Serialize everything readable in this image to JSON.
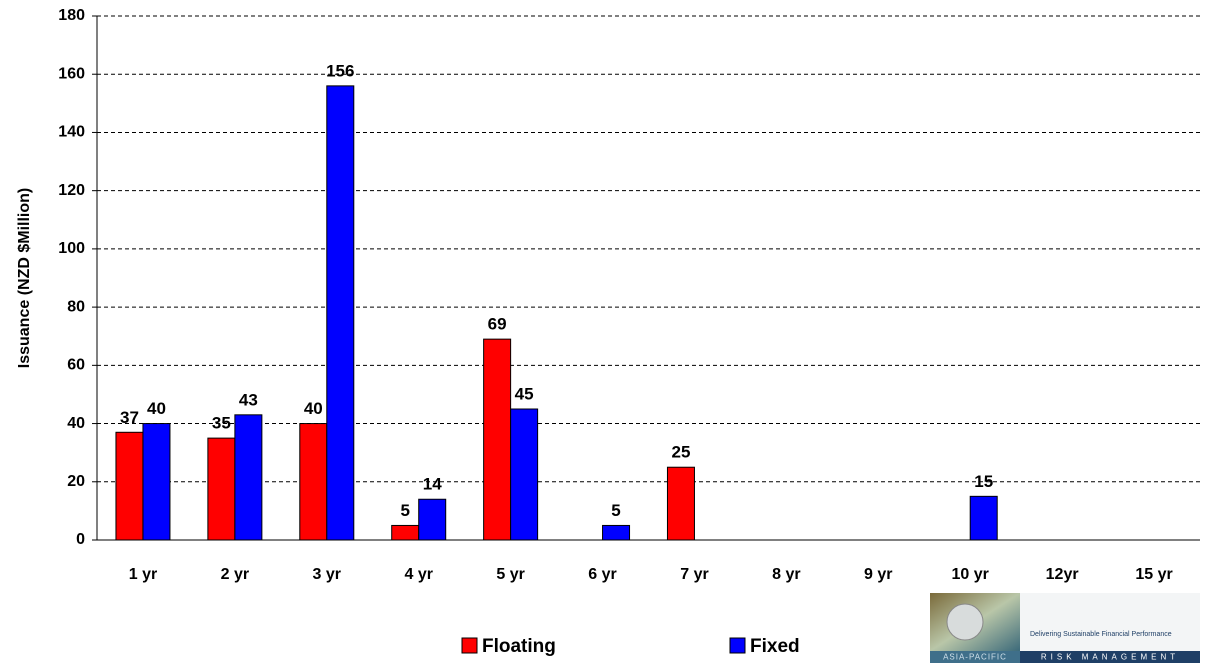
{
  "chart_data": {
    "type": "bar",
    "y_label": "Issuance (NZD $Million)",
    "categories": [
      "1 yr",
      "2 yr",
      "3 yr",
      "4 yr",
      "5 yr",
      "6 yr",
      "7 yr",
      "8 yr",
      "9 yr",
      "10 yr",
      "12yr",
      "15 yr"
    ],
    "series": [
      {
        "name": "Floating",
        "color": "#ff0000",
        "values": [
          37,
          35,
          40,
          5,
          69,
          null,
          25,
          null,
          null,
          null,
          null,
          null
        ]
      },
      {
        "name": "Fixed",
        "color": "#0000ff",
        "values": [
          40,
          43,
          156,
          14,
          45,
          5,
          null,
          null,
          null,
          15,
          null,
          null
        ]
      }
    ],
    "ylim": [
      0,
      180
    ],
    "yticks": [
      0,
      20,
      40,
      60,
      80,
      100,
      120,
      140,
      160,
      180
    ],
    "grid": true,
    "legend": "bottom"
  },
  "logo": {
    "tagline": "Delivering Sustainable Financial Performance",
    "region": "ASIA-PACIFIC",
    "name": "RISK MANAGEMENT"
  }
}
